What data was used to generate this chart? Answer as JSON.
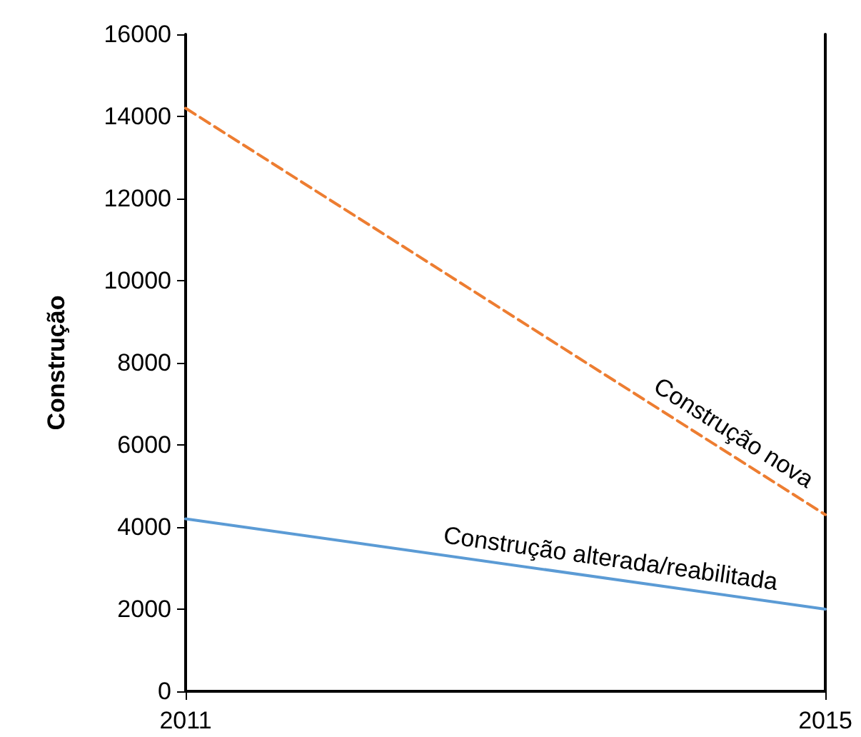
{
  "chart_data": {
    "type": "line",
    "ylabel": "Construção",
    "x": [
      2011,
      2015
    ],
    "series": [
      {
        "name": "Construção nova",
        "color": "#ed7d31",
        "values": [
          14200,
          4300
        ],
        "line_style": "dashed"
      },
      {
        "name": "Construção alterada/reabilitada",
        "color": "#5b9bd5",
        "values": [
          4200,
          2000
        ],
        "line_style": "solid"
      }
    ],
    "xlim": [
      2011,
      2015
    ],
    "xticks": [
      2011,
      2015
    ],
    "ylim": [
      0,
      16000
    ],
    "yticks": [
      0,
      2000,
      4000,
      6000,
      8000,
      10000,
      12000,
      14000,
      16000
    ],
    "grid": false,
    "marker": "none"
  }
}
